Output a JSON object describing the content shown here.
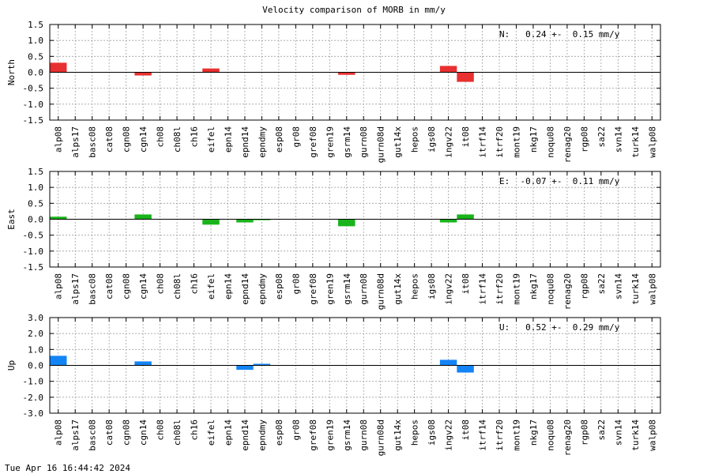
{
  "title": "Velocity comparison of MORB in mm/y",
  "footer": "Tue Apr 16 16:44:42 2024",
  "colors": {
    "north": "#e83030",
    "east": "#19b31b",
    "up": "#1384f5",
    "grid": "#a0a0a0"
  },
  "chart_data": [
    {
      "type": "bar",
      "ylabel": "North",
      "ylim": [
        -1.5,
        1.5
      ],
      "yticks": [
        "1.5",
        "1.0",
        "0.5",
        "0.0",
        "-0.5",
        "-1.0",
        "-1.5"
      ],
      "annotation": "N:   0.24 +-  0.15 mm/y",
      "grid": true,
      "categories": [
        "alp08",
        "alps17",
        "basc08",
        "cat08",
        "cgn08",
        "cgn14",
        "ch08",
        "ch08l",
        "ch16",
        "eifel",
        "epn14",
        "epnd14",
        "epndmy",
        "esp08",
        "gr08",
        "gref08",
        "gren19",
        "gsrm14",
        "gurn08",
        "gurn08d",
        "gut14x",
        "hepos",
        "igs08",
        "ingv22",
        "it08",
        "itrf14",
        "itrf20",
        "mont19",
        "nkg17",
        "noqu08",
        "renag20",
        "rgp08",
        "sa22",
        "svn14",
        "turk14",
        "walp08"
      ],
      "values": [
        0.3,
        0,
        0,
        0,
        0,
        -0.1,
        0,
        0,
        0,
        0.12,
        0,
        0,
        0,
        0,
        0,
        0,
        0,
        -0.08,
        0,
        0,
        0,
        0,
        0,
        0.2,
        -0.3,
        0,
        0,
        0,
        0,
        0,
        0,
        0,
        0,
        0,
        0,
        0
      ]
    },
    {
      "type": "bar",
      "ylabel": "East",
      "ylim": [
        -1.5,
        1.5
      ],
      "yticks": [
        "1.5",
        "1.0",
        "0.5",
        "0.0",
        "-0.5",
        "-1.0",
        "-1.5"
      ],
      "annotation": "E:  -0.07 +-  0.11 mm/y",
      "grid": true,
      "categories": [
        "alp08",
        "alps17",
        "basc08",
        "cat08",
        "cgn08",
        "cgn14",
        "ch08",
        "ch08l",
        "ch16",
        "eifel",
        "epn14",
        "epnd14",
        "epndmy",
        "esp08",
        "gr08",
        "gref08",
        "gren19",
        "gsrm14",
        "gurn08",
        "gurn08d",
        "gut14x",
        "hepos",
        "igs08",
        "ingv22",
        "it08",
        "itrf14",
        "itrf20",
        "mont19",
        "nkg17",
        "noqu08",
        "renag20",
        "rgp08",
        "sa22",
        "svn14",
        "turk14",
        "walp08"
      ],
      "values": [
        0.08,
        0,
        0,
        0,
        0,
        0.15,
        0,
        0,
        0,
        -0.17,
        0,
        -0.1,
        -0.03,
        0,
        0,
        0,
        0,
        -0.22,
        0,
        0,
        0,
        0,
        0,
        -0.1,
        0.15,
        0,
        0,
        0,
        0,
        0,
        0,
        0,
        0,
        0,
        0,
        0
      ]
    },
    {
      "type": "bar",
      "ylabel": "Up",
      "ylim": [
        -3.0,
        3.0
      ],
      "yticks": [
        "3.0",
        "2.0",
        "1.0",
        "0.0",
        "-1.0",
        "-2.0",
        "-3.0"
      ],
      "annotation": "U:   0.52 +-  0.29 mm/y",
      "grid": true,
      "categories": [
        "alp08",
        "alps17",
        "basc08",
        "cat08",
        "cgn08",
        "cgn14",
        "ch08",
        "ch08l",
        "ch16",
        "eifel",
        "epn14",
        "epnd14",
        "epndmy",
        "esp08",
        "gr08",
        "gref08",
        "gren19",
        "gsrm14",
        "gurn08",
        "gurn08d",
        "gut14x",
        "hepos",
        "igs08",
        "ingv22",
        "it08",
        "itrf14",
        "itrf20",
        "mont19",
        "nkg17",
        "noqu08",
        "renag20",
        "rgp08",
        "sa22",
        "svn14",
        "turk14",
        "walp08"
      ],
      "values": [
        0.6,
        0,
        0,
        0,
        0,
        0.25,
        0,
        0,
        0,
        0,
        0,
        -0.28,
        0.1,
        0,
        0,
        0,
        0,
        0,
        0,
        0,
        0,
        0,
        0,
        0.35,
        -0.45,
        0,
        0,
        0,
        0,
        0,
        0,
        0,
        0,
        0,
        0,
        0
      ]
    }
  ]
}
